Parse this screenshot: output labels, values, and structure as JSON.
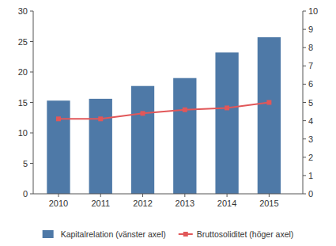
{
  "chart_data": {
    "type": "bar",
    "x": [
      2010,
      2011,
      2012,
      2013,
      2014,
      2015
    ],
    "xlim": [
      2009.4,
      2015.8
    ],
    "xticks": [
      2010,
      2011,
      2012,
      2013,
      2014,
      2015
    ],
    "series": [
      {
        "name": "Kapitalrelation (vänster axel)",
        "type": "bar",
        "values": [
          15.3,
          15.6,
          17.7,
          19.0,
          23.2,
          25.7
        ]
      },
      {
        "name": "Bruttosoliditet (höger axel)",
        "type": "line",
        "axis": "y2",
        "marker": "square",
        "values": [
          4.1,
          4.1,
          4.4,
          4.6,
          4.7,
          5.0
        ]
      }
    ],
    "ylim": [
      0,
      30
    ],
    "yticks": [
      0,
      5,
      10,
      15,
      20,
      25,
      30
    ],
    "y2lim": [
      0,
      10
    ],
    "y2ticks": [
      0,
      1,
      2,
      3,
      4,
      5,
      6,
      7,
      8,
      9,
      10
    ],
    "grid": false,
    "legend": "bottom"
  }
}
